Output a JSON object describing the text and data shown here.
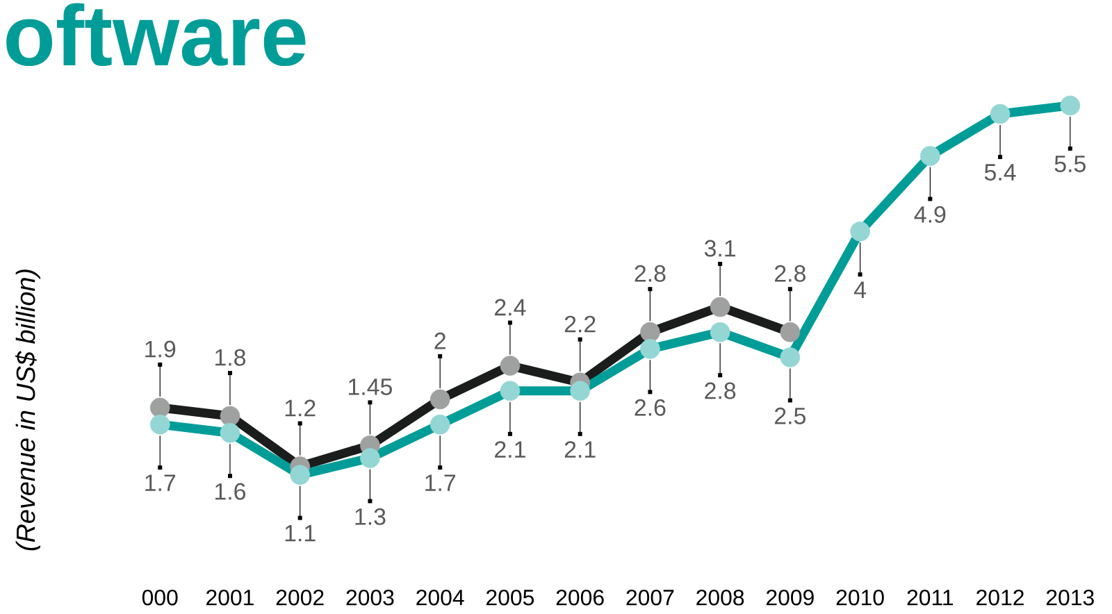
{
  "chart_data": {
    "type": "line",
    "title": "oftware",
    "ylabel": "(Revenue in US$ billion)",
    "categories": [
      "000",
      "2001",
      "2002",
      "2003",
      "2004",
      "2005",
      "2006",
      "2007",
      "2008",
      "2009",
      "2010",
      "2011",
      "2012",
      "2013"
    ],
    "series": [
      {
        "color": "#1b1d1d",
        "values": [
          1.9,
          1.8,
          1.2,
          1.45,
          2,
          2.4,
          2.2,
          2.8,
          3.1,
          2.8,
          null,
          null,
          null,
          null
        ]
      },
      {
        "color": "#009d98",
        "values": [
          1.7,
          1.6,
          1.1,
          1.3,
          1.7,
          2.1,
          2.1,
          2.6,
          2.8,
          2.5,
          4,
          4.9,
          5.4,
          5.5
        ]
      }
    ],
    "data_labels": true,
    "marker": "circle",
    "line_style": "solid"
  }
}
